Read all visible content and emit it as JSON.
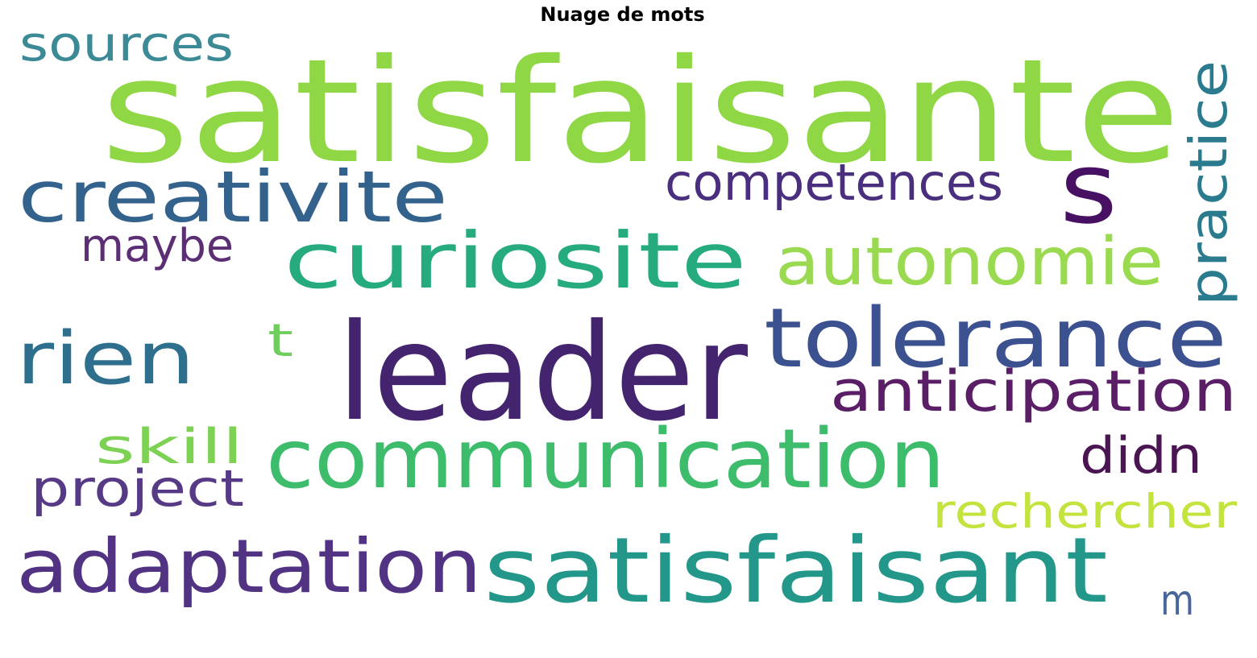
{
  "title": "Nuage de mots",
  "words": {
    "satisfaisante": {
      "text": "satisfaisante",
      "color": "#8fd744"
    },
    "sources": {
      "text": "sources",
      "color": "#3b8a96"
    },
    "creativite": {
      "text": "creativite",
      "color": "#33638d"
    },
    "competences": {
      "text": "competences",
      "color": "#4b2f7f"
    },
    "s": {
      "text": "s",
      "color": "#471063"
    },
    "practice": {
      "text": "practice",
      "color": "#2a7b8e"
    },
    "maybe": {
      "text": "maybe",
      "color": "#5c2e74"
    },
    "curiosite": {
      "text": "curiosite",
      "color": "#26ab7e"
    },
    "autonomie": {
      "text": "autonomie",
      "color": "#9ada50"
    },
    "rien": {
      "text": "rien",
      "color": "#2f6f8e"
    },
    "t": {
      "text": "t",
      "color": "#6fce5d"
    },
    "leader": {
      "text": "leader",
      "color": "#45246f"
    },
    "tolerance": {
      "text": "tolerance",
      "color": "#3c5190"
    },
    "anticipation": {
      "text": "anticipation",
      "color": "#5a1e66"
    },
    "skill": {
      "text": "skill",
      "color": "#7dd153"
    },
    "communication": {
      "text": "communication",
      "color": "#3dbd6c"
    },
    "didn": {
      "text": "didn",
      "color": "#4b1452"
    },
    "project": {
      "text": "project",
      "color": "#573a86"
    },
    "rechercher": {
      "text": "rechercher",
      "color": "#c3e33e"
    },
    "adaptation": {
      "text": "adaptation",
      "color": "#523283"
    },
    "satisfaisant": {
      "text": "satisfaisant",
      "color": "#23988a"
    },
    "m": {
      "text": "m",
      "color": "#48669a"
    }
  }
}
